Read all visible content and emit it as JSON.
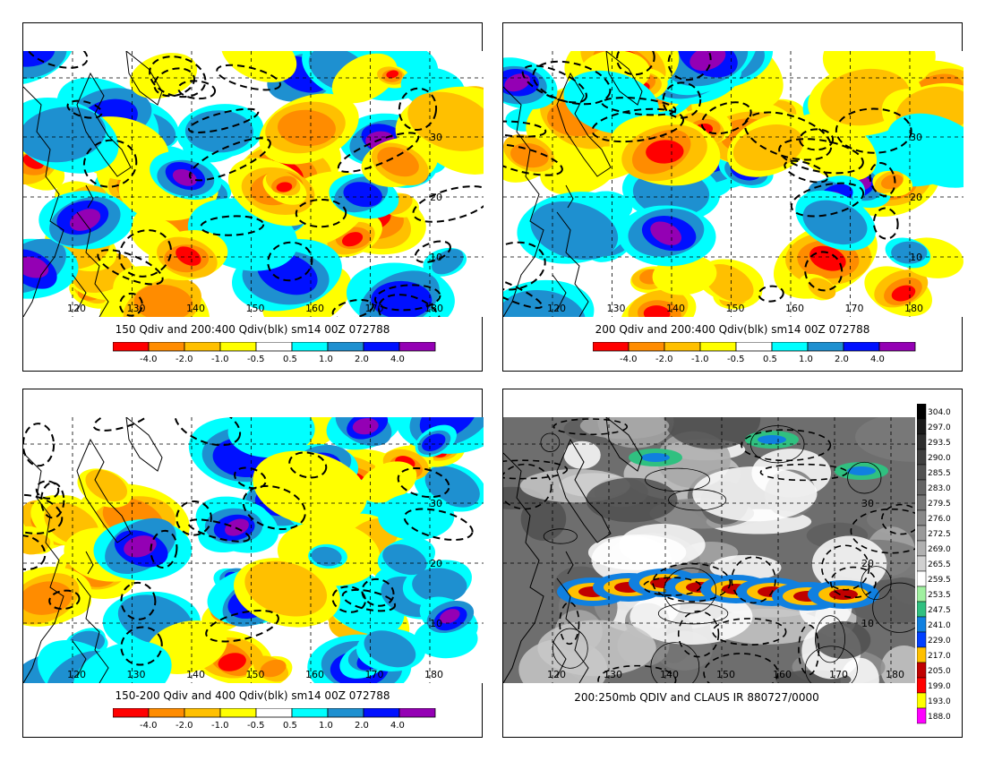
{
  "panels": [
    {
      "id": "p1",
      "caption": "150 Qdiv and 200:400 Qdiv(blk) sm14 00Z 072788",
      "type": "qdiv"
    },
    {
      "id": "p2",
      "caption": "200 Qdiv and 200:400 Qdiv(blk) sm14 00Z 072788",
      "type": "qdiv"
    },
    {
      "id": "p3",
      "caption": "150-200 Qdiv and 400 Qdiv(blk) sm14 00Z 072788",
      "type": "qdiv"
    },
    {
      "id": "p4",
      "caption": "200:250mb QDIV and CLAUS IR 880727/0000",
      "type": "ir"
    }
  ],
  "lon_ticks": [
    "120",
    "130",
    "140",
    "150",
    "160",
    "170",
    "180"
  ],
  "lat_ticks": [
    "10",
    "20",
    "30"
  ],
  "colorbar": {
    "labels": [
      "-4.0",
      "-2.0",
      "-1.0",
      "-0.5",
      "0.5",
      "1.0",
      "2.0",
      "4.0"
    ],
    "colors": [
      "#ff0000",
      "#ff8c00",
      "#ffc000",
      "#ffff00",
      "#ffffff",
      "#00ffff",
      "#1e90d0",
      "#0010ff",
      "#9400b4"
    ]
  },
  "ir_colorbar": {
    "labels": [
      "304.0",
      "297.0",
      "293.5",
      "290.0",
      "285.5",
      "283.0",
      "279.5",
      "276.0",
      "272.5",
      "269.0",
      "265.5",
      "259.5",
      "253.5",
      "247.5",
      "241.0",
      "229.0",
      "217.0",
      "205.0",
      "199.0",
      "193.0",
      "188.0"
    ],
    "colors": [
      "#000000",
      "#1a1a1a",
      "#2e2e2e",
      "#404040",
      "#525252",
      "#646464",
      "#767676",
      "#888888",
      "#9a9a9a",
      "#b0b0b0",
      "#d0d0d0",
      "#ffffff",
      "#a0f0a0",
      "#30c080",
      "#1080e0",
      "#0040ff",
      "#ffc000",
      "#c00000",
      "#ff0000",
      "#ffff00",
      "#ff00ff"
    ]
  }
}
